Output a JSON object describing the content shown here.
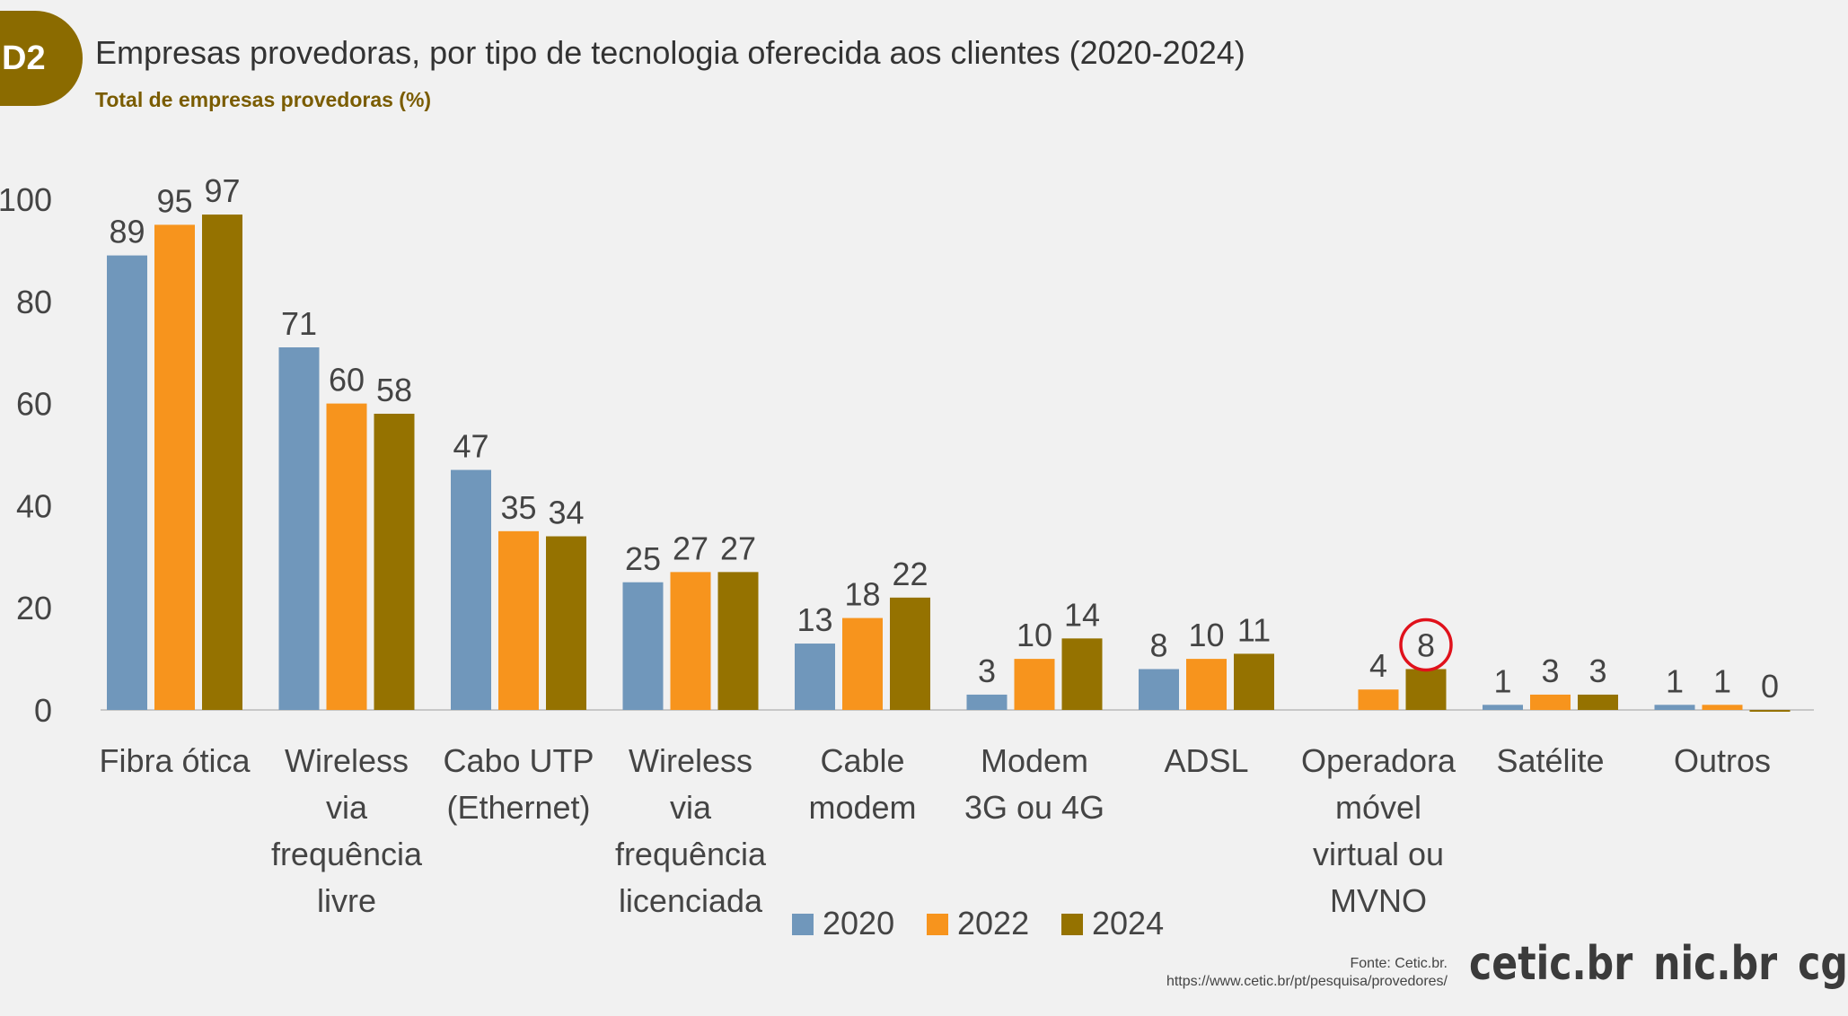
{
  "badge": "D2",
  "title": "Empresas provedoras, por tipo de tecnologia oferecida aos clientes (2020-2024)",
  "subtitle": "Total de empresas provedoras (%)",
  "source": {
    "line1": "Fonte: Cetic.br.",
    "line2": "https://www.cetic.br/pt/pesquisa/provedores/"
  },
  "logos": [
    "cetic.br",
    "nic.br",
    "cgi.br"
  ],
  "chart_data": {
    "type": "bar",
    "ylim": [
      0,
      100
    ],
    "yticks": [
      0,
      20,
      40,
      60,
      80,
      100
    ],
    "grid": false,
    "legend_placement": "bottom",
    "categories": [
      [
        "Fibra ótica"
      ],
      [
        "Wireless",
        "via",
        "frequência",
        "livre"
      ],
      [
        "Cabo UTP",
        "(Ethernet)"
      ],
      [
        "Wireless",
        "via",
        "frequência",
        "licenciada"
      ],
      [
        "Cable",
        "modem"
      ],
      [
        "Modem",
        "3G ou 4G"
      ],
      [
        "ADSL"
      ],
      [
        "Operadora",
        "móvel",
        "virtual ou",
        "MVNO"
      ],
      [
        "Satélite"
      ],
      [
        "Outros"
      ]
    ],
    "series": [
      {
        "name": "2020",
        "color": "#7097bb",
        "values": [
          89,
          71,
          47,
          25,
          13,
          3,
          8,
          null,
          1,
          1
        ]
      },
      {
        "name": "2022",
        "color": "#f7941d",
        "values": [
          95,
          60,
          35,
          27,
          18,
          10,
          10,
          4,
          3,
          1
        ]
      },
      {
        "name": "2024",
        "color": "#957200",
        "values": [
          97,
          58,
          34,
          27,
          22,
          14,
          11,
          8,
          3,
          0
        ]
      }
    ],
    "highlight": {
      "category_index": 7,
      "series_index": 2,
      "color": "#e0111b"
    }
  }
}
